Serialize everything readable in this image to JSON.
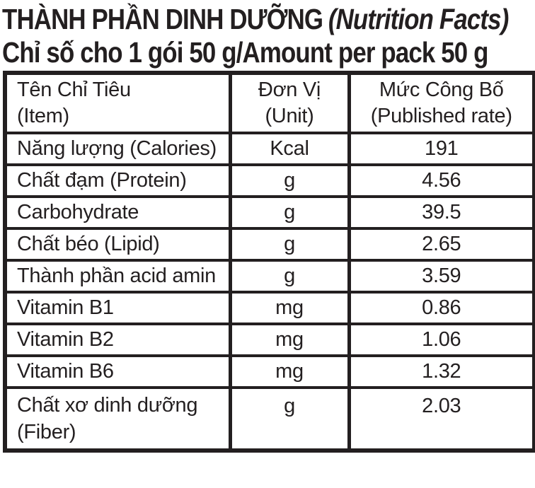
{
  "header": {
    "title_vi": "THÀNH PHẦN DINH DƯỠNG",
    "title_en": "(Nutrition Facts)",
    "subtitle": "Chỉ số cho 1 gói 50 g/Amount per pack 50 g"
  },
  "table": {
    "columns": [
      {
        "line1": "Tên Chỉ Tiêu",
        "line2": "(Item)"
      },
      {
        "line1": "Đơn Vị",
        "line2": "(Unit)"
      },
      {
        "line1": "Mức Công Bố",
        "line2": "(Published rate)"
      }
    ],
    "rows": [
      {
        "item": "Năng lượng (Calories)",
        "item2": "",
        "unit": "Kcal",
        "value": "191"
      },
      {
        "item": "Chất đạm (Protein)",
        "item2": "",
        "unit": "g",
        "value": "4.56"
      },
      {
        "item": "Carbohydrate",
        "item2": "",
        "unit": "g",
        "value": "39.5"
      },
      {
        "item": "Chất béo (Lipid)",
        "item2": "",
        "unit": "g",
        "value": "2.65"
      },
      {
        "item": "Thành phần acid amin",
        "item2": "",
        "unit": "g",
        "value": "3.59"
      },
      {
        "item": "Vitamin B1",
        "item2": "",
        "unit": "mg",
        "value": "0.86"
      },
      {
        "item": "Vitamin B2",
        "item2": "",
        "unit": "mg",
        "value": "1.06"
      },
      {
        "item": "Vitamin B6",
        "item2": "",
        "unit": "mg",
        "value": "1.32"
      },
      {
        "item": "Chất xơ dinh dưỡng",
        "item2": "(Fiber)",
        "unit": "g",
        "value": "2.03"
      }
    ]
  },
  "colors": {
    "text": "#231f20",
    "border": "#231f20",
    "background": "#ffffff"
  }
}
